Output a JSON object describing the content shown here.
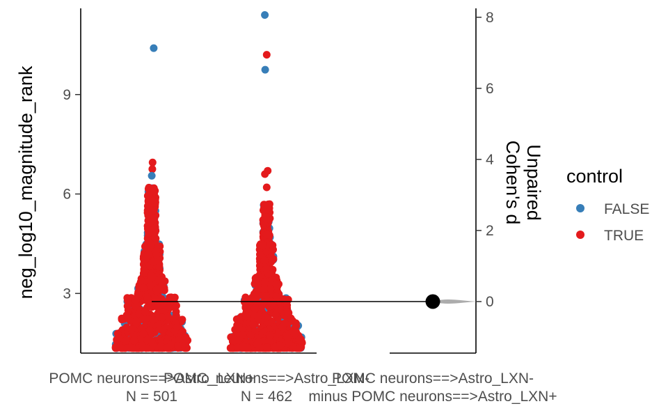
{
  "chart_data": {
    "type": "scatter",
    "subtype": "swarm-with-effect-size",
    "ylabel_left": "neg_log10_magnitude_rank",
    "ylabel_right_lines": [
      "Unpaired",
      "Cohen's d"
    ],
    "left_axis": {
      "ticks": [
        3,
        6,
        9
      ],
      "ylim": [
        1.2,
        11.6
      ]
    },
    "right_axis": {
      "ticks": [
        0,
        2,
        4,
        6,
        8
      ],
      "ylim": [
        -1.45,
        8.25
      ]
    },
    "groups": [
      {
        "label_lines": [
          "POMC neurons==>Astro_LXN+",
          "N = 501"
        ]
      },
      {
        "label_lines": [
          "POMC_neurons==>Astro_LXN-",
          "N = 462"
        ]
      },
      {
        "label_lines": [
          "POMC neurons==>Astro_LXN-",
          "minus POMC neurons==>Astro_LXN+"
        ]
      }
    ],
    "legend": {
      "title": "control",
      "placement": "right",
      "entries": [
        {
          "label": "FALSE",
          "color": "#377EB8"
        },
        {
          "label": "TRUE",
          "color": "#E41A1C"
        }
      ]
    },
    "swarm_outliers": [
      {
        "group": 0,
        "control": "FALSE",
        "y": 10.4
      },
      {
        "group": 0,
        "control": "TRUE",
        "y": 6.95
      },
      {
        "group": 0,
        "control": "TRUE",
        "y": 6.75
      },
      {
        "group": 0,
        "control": "FALSE",
        "y": 6.55
      },
      {
        "group": 1,
        "control": "FALSE",
        "y": 11.4
      },
      {
        "group": 1,
        "control": "TRUE",
        "y": 10.2
      },
      {
        "group": 1,
        "control": "FALSE",
        "y": 9.75
      },
      {
        "group": 1,
        "control": "TRUE",
        "y": 6.7
      },
      {
        "group": 1,
        "control": "TRUE",
        "y": 6.6
      },
      {
        "group": 1,
        "control": "TRUE",
        "y": 6.2
      }
    ],
    "effect_size": {
      "group": 2,
      "estimate": 0.0,
      "ci": [
        -0.12,
        0.12
      ],
      "reference_line_from_group": 0
    }
  }
}
